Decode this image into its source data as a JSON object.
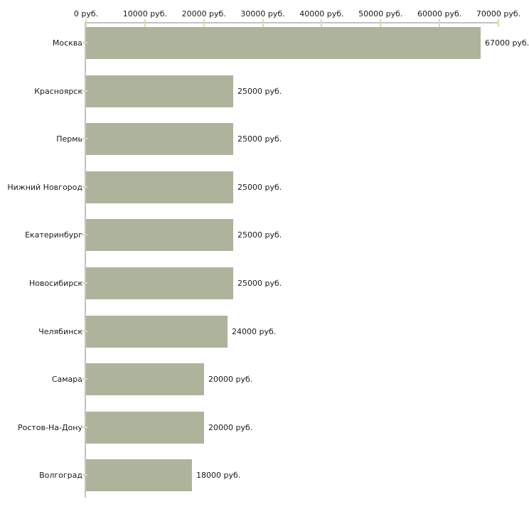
{
  "chart_data": {
    "type": "bar",
    "orientation": "horizontal",
    "title": "",
    "xlabel": "",
    "ylabel": "",
    "unit": "руб.",
    "xlim": [
      0,
      70000
    ],
    "grid": false,
    "legend": false,
    "categories": [
      "Москва",
      "Красноярск",
      "Пермь",
      "Нижний Новгород",
      "Екатеринбург",
      "Новосибирск",
      "Челябинск",
      "Самара",
      "Ростов-На-Дону",
      "Волгоград"
    ],
    "values": [
      67000,
      25000,
      25000,
      25000,
      25000,
      25000,
      24000,
      20000,
      20000,
      18000
    ],
    "value_labels": [
      "67000 руб.",
      "25000 руб.",
      "25000 руб.",
      "25000 руб.",
      "25000 руб.",
      "25000 руб.",
      "24000 руб.",
      "20000 руб.",
      "20000 руб.",
      "18000 руб."
    ],
    "x_tick_values": [
      0,
      10000,
      20000,
      30000,
      40000,
      50000,
      60000,
      70000
    ],
    "x_tick_labels": [
      "0 руб.",
      "10000 руб.",
      "20000 руб.",
      "30000 руб.",
      "40000 руб.",
      "50000 руб.",
      "60000 руб.",
      "70000 руб."
    ],
    "colors": {
      "bar": "#aeb49c",
      "axis_line": "#c2c2c2",
      "tick_mark": "#d9dcae",
      "text": "#1a1a1a",
      "background": "#ffffff"
    }
  }
}
